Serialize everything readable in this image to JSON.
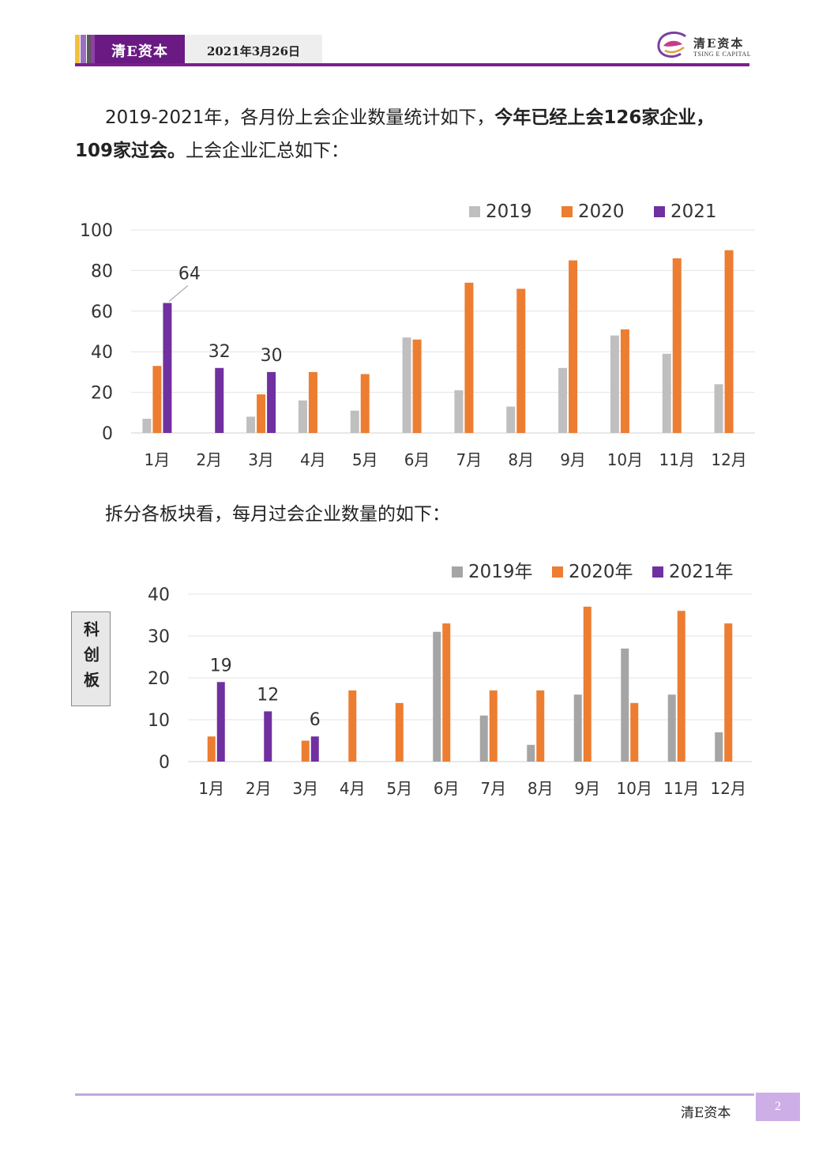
{
  "header": {
    "brand": "清E资本",
    "date": "2021年3月26日",
    "logo_cn": "清E资本",
    "logo_en": "TSING E CAPITAL",
    "accent": "#6a1a82",
    "stripe_colors": [
      "#f0c23a",
      "#9b6fc0",
      "#5a5a5a",
      "#8e3fa8"
    ]
  },
  "paragraph1": {
    "normal_1": "2019-2021年，各月份上会企业数量统计如下，",
    "bold": "今年已经上会126家企业，109家过会。",
    "normal_2": "上会企业汇总如下："
  },
  "paragraph2": {
    "text": "拆分各板块看，每月过会企业数量的如下："
  },
  "board_label": "科创板",
  "chart_data": [
    {
      "type": "bar",
      "categories": [
        "1月",
        "2月",
        "3月",
        "4月",
        "5月",
        "6月",
        "7月",
        "8月",
        "9月",
        "10月",
        "11月",
        "12月"
      ],
      "series": [
        {
          "name": "2019",
          "color": "#bfbfbf",
          "values": [
            7,
            0,
            8,
            16,
            11,
            47,
            21,
            13,
            32,
            48,
            39,
            24
          ]
        },
        {
          "name": "2020",
          "color": "#ed7d31",
          "values": [
            33,
            0,
            19,
            30,
            29,
            46,
            74,
            71,
            85,
            51,
            86,
            90
          ]
        },
        {
          "name": "2021",
          "color": "#7030a0",
          "values": [
            64,
            32,
            30,
            null,
            null,
            null,
            null,
            null,
            null,
            null,
            null,
            null
          ]
        }
      ],
      "data_labels": [
        {
          "series": "2021",
          "index": 0,
          "text": "64"
        },
        {
          "series": "2021",
          "index": 1,
          "text": "32"
        },
        {
          "series": "2021",
          "index": 2,
          "text": "30"
        }
      ],
      "yticks": [
        "0",
        "20",
        "40",
        "60",
        "80",
        "100"
      ],
      "ylim": [
        0,
        100
      ],
      "grid": true,
      "legend": "top-right"
    },
    {
      "type": "bar",
      "categories": [
        "1月",
        "2月",
        "3月",
        "4月",
        "5月",
        "6月",
        "7月",
        "8月",
        "9月",
        "10月",
        "11月",
        "12月"
      ],
      "series": [
        {
          "name": "2019年",
          "color": "#a5a5a5",
          "values": [
            0,
            0,
            0,
            0,
            0,
            31,
            11,
            4,
            16,
            27,
            16,
            7
          ]
        },
        {
          "name": "2020年",
          "color": "#ed7d31",
          "values": [
            6,
            0,
            5,
            17,
            14,
            33,
            17,
            17,
            37,
            14,
            36,
            33
          ]
        },
        {
          "name": "2021年",
          "color": "#7030a0",
          "values": [
            19,
            12,
            6,
            null,
            null,
            null,
            null,
            null,
            null,
            null,
            null,
            null
          ]
        }
      ],
      "data_labels": [
        {
          "series": "2021年",
          "index": 0,
          "text": "19"
        },
        {
          "series": "2021年",
          "index": 1,
          "text": "12"
        },
        {
          "series": "2021年",
          "index": 2,
          "text": "6"
        }
      ],
      "yticks": [
        "0",
        "10",
        "20",
        "30",
        "40"
      ],
      "ylim": [
        0,
        40
      ],
      "grid": true,
      "legend": "top-right"
    }
  ],
  "footer": {
    "brand": "清E资本",
    "page": "2"
  }
}
